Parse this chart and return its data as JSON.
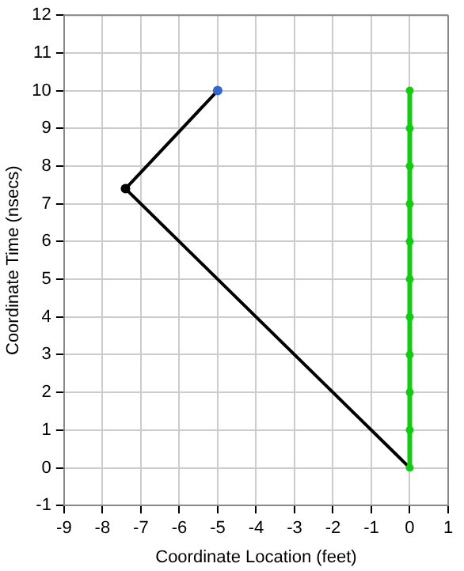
{
  "chart_data": {
    "type": "line",
    "xlabel": "Coordinate Location (feet)",
    "ylabel": "Coordinate Time (nsecs)",
    "xlim": [
      -9,
      1
    ],
    "xticks": [
      -9,
      -8,
      -7,
      -6,
      -5,
      -4,
      -3,
      -2,
      -1,
      0,
      1
    ],
    "ylim": [
      -1,
      12
    ],
    "yticks": [
      -1,
      0,
      1,
      2,
      3,
      4,
      5,
      6,
      7,
      8,
      9,
      10,
      11,
      12
    ],
    "grid": true,
    "legend": false,
    "series": [
      {
        "color": "#000000",
        "marker": "none",
        "x": [
          0,
          -7.4,
          -5
        ],
        "values": [
          0,
          7.4,
          10
        ]
      },
      {
        "type": "scatter",
        "color": "#000000",
        "marker": "circle",
        "x": [
          -7.4
        ],
        "values": [
          7.4
        ]
      },
      {
        "type": "scatter",
        "color": "#3366cc",
        "marker": "circle",
        "x": [
          -5
        ],
        "values": [
          10
        ]
      },
      {
        "color": "#11cc11",
        "marker": "circle",
        "x": [
          0,
          0,
          0,
          0,
          0,
          0,
          0,
          0,
          0,
          0,
          0
        ],
        "values": [
          0,
          1,
          2,
          3,
          4,
          5,
          6,
          7,
          8,
          9,
          10
        ]
      }
    ]
  }
}
